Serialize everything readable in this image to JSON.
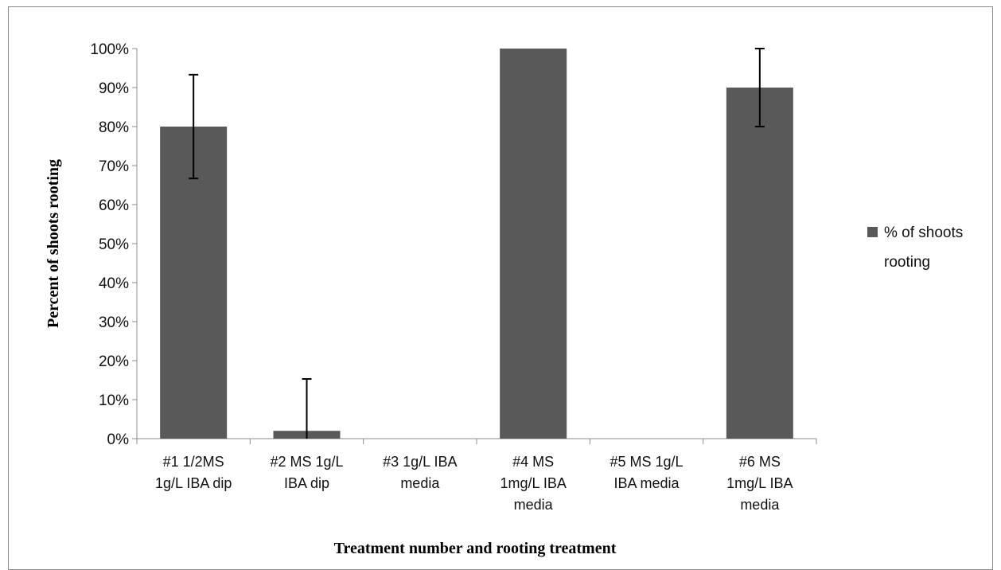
{
  "chart_data": {
    "type": "bar",
    "categories": [
      [
        "#1 1/2MS",
        "1g/L IBA dip"
      ],
      [
        "#2 MS 1g/L",
        "IBA dip"
      ],
      [
        "#3 1g/L IBA",
        "media"
      ],
      [
        "#4 MS",
        "1mg/L IBA",
        "media"
      ],
      [
        "#5 MS 1g/L",
        "IBA media"
      ],
      [
        "#6 MS",
        "1mg/L IBA",
        "media"
      ]
    ],
    "series": [
      {
        "name": "% of shoots rooting",
        "values": [
          80,
          2,
          0,
          100,
          0,
          90
        ],
        "error_bars": [
          13.3,
          13.3,
          0,
          0,
          0,
          10
        ]
      }
    ],
    "xlabel": "Treatment number and rooting treatment",
    "ylabel": "Percent of shoots rooting",
    "ylim": [
      0,
      100
    ],
    "yticks": [
      "0%",
      "10%",
      "20%",
      "30%",
      "40%",
      "50%",
      "60%",
      "70%",
      "80%",
      "90%",
      "100%"
    ],
    "grid": false,
    "legend_position": "right",
    "colors": {
      "bar": "#595959",
      "error_bar": "#000000",
      "axis": "#8c8c8c"
    }
  }
}
